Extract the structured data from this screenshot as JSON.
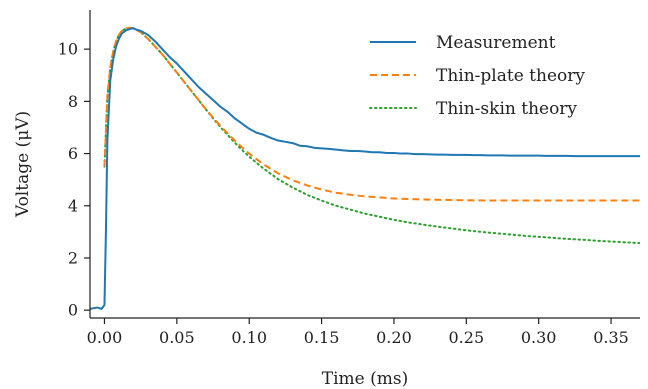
{
  "chart_data": {
    "type": "line",
    "xlabel": "Time (ms)",
    "ylabel": "Voltage (μV)",
    "xlim": [
      -0.01,
      0.37
    ],
    "ylim": [
      -0.3,
      11.5
    ],
    "xticks": [
      {
        "value": 0.0,
        "label": "0.00"
      },
      {
        "value": 0.05,
        "label": "0.05"
      },
      {
        "value": 0.1,
        "label": "0.10"
      },
      {
        "value": 0.15,
        "label": "0.15"
      },
      {
        "value": 0.2,
        "label": "0.20"
      },
      {
        "value": 0.25,
        "label": "0.25"
      },
      {
        "value": 0.3,
        "label": "0.30"
      },
      {
        "value": 0.35,
        "label": "0.35"
      }
    ],
    "yticks": [
      {
        "value": 0,
        "label": "0"
      },
      {
        "value": 2,
        "label": "2"
      },
      {
        "value": 4,
        "label": "4"
      },
      {
        "value": 6,
        "label": "6"
      },
      {
        "value": 8,
        "label": "8"
      },
      {
        "value": 10,
        "label": "10"
      }
    ],
    "grid": false,
    "legend_position": "top-right",
    "series": [
      {
        "name": "Measurement",
        "color": "#1f77b4",
        "style": "solid",
        "x": [
          -0.01,
          -0.005,
          -0.002,
          0.0,
          0.001,
          0.002,
          0.004,
          0.006,
          0.008,
          0.01,
          0.012,
          0.015,
          0.018,
          0.02,
          0.022,
          0.025,
          0.03,
          0.035,
          0.04,
          0.045,
          0.05,
          0.055,
          0.06,
          0.065,
          0.07,
          0.075,
          0.08,
          0.085,
          0.09,
          0.095,
          0.1,
          0.105,
          0.11,
          0.115,
          0.12,
          0.125,
          0.13,
          0.135,
          0.14,
          0.145,
          0.15,
          0.155,
          0.16,
          0.165,
          0.17,
          0.175,
          0.18,
          0.185,
          0.19,
          0.195,
          0.2,
          0.205,
          0.21,
          0.215,
          0.22,
          0.225,
          0.23,
          0.235,
          0.24,
          0.245,
          0.25,
          0.255,
          0.26,
          0.265,
          0.27,
          0.275,
          0.28,
          0.285,
          0.29,
          0.295,
          0.3,
          0.305,
          0.31,
          0.315,
          0.32,
          0.325,
          0.33,
          0.335,
          0.34,
          0.345,
          0.35,
          0.355,
          0.36,
          0.365,
          0.37
        ],
        "y": [
          0.05,
          0.1,
          0.05,
          0.2,
          3.0,
          6.5,
          8.8,
          9.6,
          10.1,
          10.4,
          10.6,
          10.72,
          10.78,
          10.8,
          10.75,
          10.7,
          10.55,
          10.3,
          10.0,
          9.7,
          9.45,
          9.15,
          8.85,
          8.55,
          8.3,
          8.05,
          7.8,
          7.6,
          7.35,
          7.15,
          6.95,
          6.8,
          6.72,
          6.6,
          6.5,
          6.45,
          6.4,
          6.3,
          6.28,
          6.22,
          6.2,
          6.18,
          6.15,
          6.12,
          6.1,
          6.1,
          6.08,
          6.05,
          6.05,
          6.02,
          6.02,
          6.0,
          6.0,
          5.98,
          5.98,
          5.97,
          5.96,
          5.96,
          5.95,
          5.95,
          5.95,
          5.94,
          5.94,
          5.93,
          5.93,
          5.93,
          5.92,
          5.92,
          5.92,
          5.92,
          5.92,
          5.91,
          5.91,
          5.91,
          5.91,
          5.9,
          5.9,
          5.9,
          5.9,
          5.9,
          5.9,
          5.9,
          5.9,
          5.9,
          5.9
        ]
      },
      {
        "name": "Thin-plate theory",
        "color": "#ff7f0e",
        "style": "dashed",
        "x": [
          0.0,
          0.002,
          0.004,
          0.006,
          0.008,
          0.01,
          0.012,
          0.015,
          0.018,
          0.02,
          0.025,
          0.03,
          0.035,
          0.04,
          0.045,
          0.05,
          0.055,
          0.06,
          0.065,
          0.07,
          0.075,
          0.08,
          0.085,
          0.09,
          0.095,
          0.1,
          0.11,
          0.12,
          0.13,
          0.14,
          0.15,
          0.16,
          0.17,
          0.18,
          0.19,
          0.2,
          0.21,
          0.22,
          0.23,
          0.24,
          0.25,
          0.26,
          0.27,
          0.28,
          0.29,
          0.3,
          0.31,
          0.32,
          0.33,
          0.34,
          0.35,
          0.36,
          0.37
        ],
        "y": [
          5.5,
          8.2,
          9.3,
          9.9,
          10.3,
          10.55,
          10.7,
          10.8,
          10.82,
          10.8,
          10.65,
          10.4,
          10.1,
          9.8,
          9.45,
          9.1,
          8.75,
          8.4,
          8.05,
          7.7,
          7.38,
          7.07,
          6.78,
          6.5,
          6.24,
          6.0,
          5.58,
          5.24,
          4.98,
          4.78,
          4.62,
          4.5,
          4.42,
          4.36,
          4.32,
          4.28,
          4.26,
          4.24,
          4.23,
          4.22,
          4.21,
          4.205,
          4.2,
          4.2,
          4.2,
          4.2,
          4.2,
          4.2,
          4.2,
          4.2,
          4.2,
          4.2,
          4.2
        ]
      },
      {
        "name": "Thin-skin theory",
        "color": "#2ca02c",
        "style": "dotted",
        "x": [
          0.0,
          0.002,
          0.004,
          0.006,
          0.008,
          0.01,
          0.012,
          0.015,
          0.018,
          0.02,
          0.025,
          0.03,
          0.035,
          0.04,
          0.045,
          0.05,
          0.055,
          0.06,
          0.065,
          0.07,
          0.075,
          0.08,
          0.085,
          0.09,
          0.095,
          0.1,
          0.11,
          0.12,
          0.13,
          0.14,
          0.15,
          0.16,
          0.17,
          0.18,
          0.19,
          0.2,
          0.21,
          0.22,
          0.23,
          0.24,
          0.25,
          0.26,
          0.27,
          0.28,
          0.29,
          0.3,
          0.31,
          0.32,
          0.33,
          0.34,
          0.35,
          0.36,
          0.37
        ],
        "y": [
          5.5,
          8.2,
          9.3,
          9.9,
          10.3,
          10.55,
          10.7,
          10.8,
          10.82,
          10.8,
          10.65,
          10.4,
          10.1,
          9.8,
          9.45,
          9.1,
          8.75,
          8.4,
          8.05,
          7.7,
          7.35,
          7.02,
          6.72,
          6.42,
          6.14,
          5.88,
          5.42,
          5.02,
          4.7,
          4.42,
          4.2,
          4.0,
          3.85,
          3.7,
          3.58,
          3.46,
          3.36,
          3.28,
          3.2,
          3.13,
          3.06,
          3.0,
          2.95,
          2.9,
          2.85,
          2.81,
          2.77,
          2.73,
          2.7,
          2.66,
          2.63,
          2.6,
          2.57
        ]
      }
    ]
  }
}
